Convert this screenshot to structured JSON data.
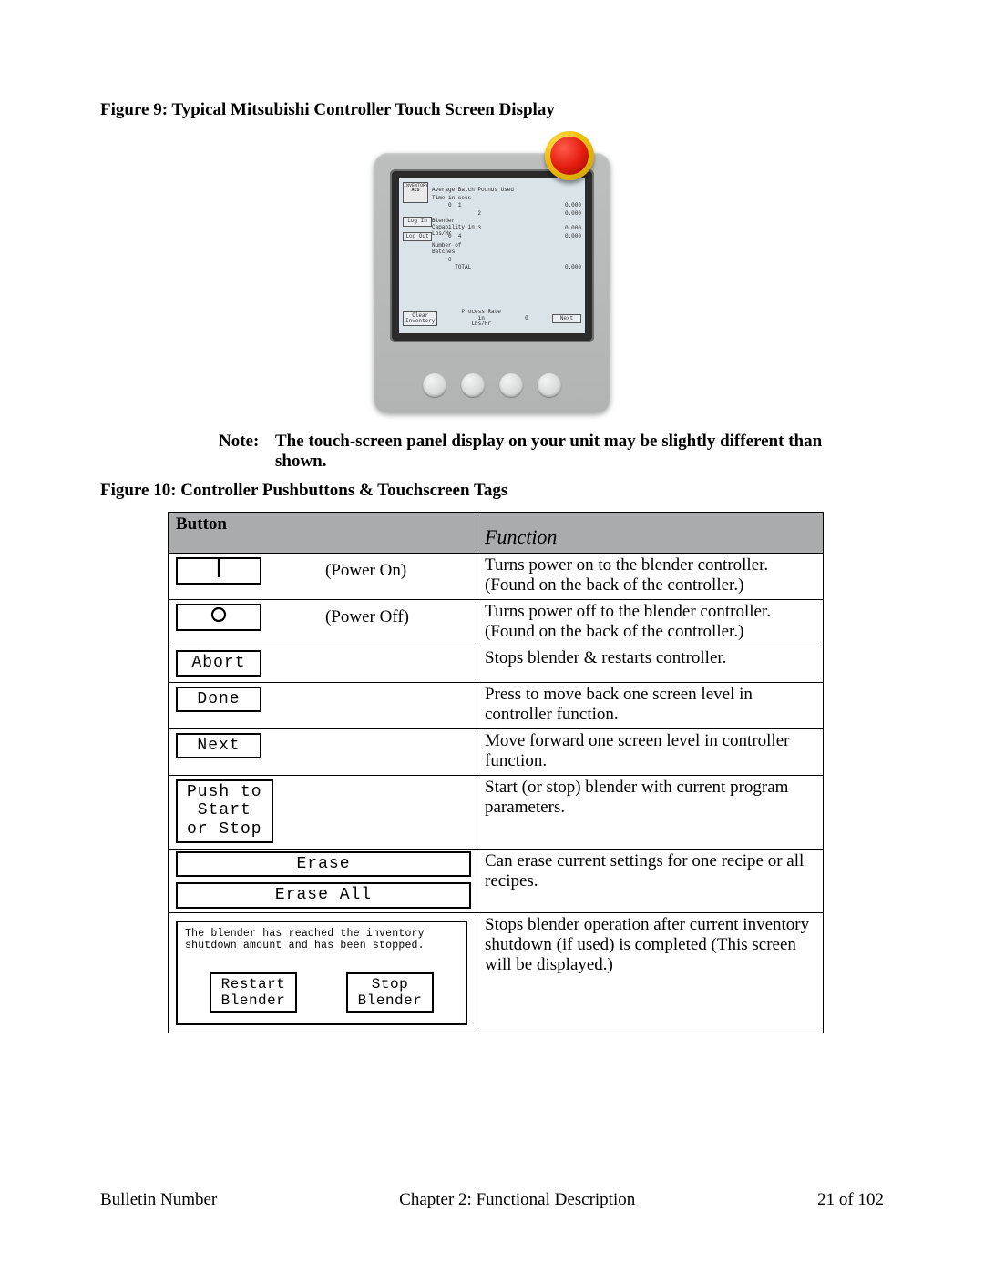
{
  "figure9": {
    "caption": "Figure 9: Typical Mitsubishi Controller Touch Screen Display",
    "device": {
      "badge_line1": "INVENTORY",
      "badge_line2": "ACS",
      "side_buttons": [
        "Log In",
        "Log Out"
      ],
      "heading1": "Average Batch Pounds Used",
      "heading2": "Time in secs",
      "blender_label": "Blender\nCapability in\nLbs/Hr",
      "batches_label": "Number of\nBatches",
      "total_label": "TOTAL",
      "rate_label": "Process Rate\nin\nLbs/Hr",
      "clear_label": "Clear\nInventory",
      "next_label": "Next",
      "channels": [
        "1",
        "2",
        "3",
        "4"
      ],
      "zeros": [
        "0.000",
        "0.000",
        "0.000",
        "0.000"
      ],
      "rate_value": "0",
      "total_value": "0.000",
      "channel_value": "0"
    }
  },
  "note": {
    "label": "Note:",
    "text": "The touch-screen panel display on your unit may be slightly different than shown."
  },
  "figure10": {
    "caption": "Figure 10: Controller Pushbuttons & Touchscreen Tags",
    "headers": {
      "button": "Button",
      "function": "Function"
    },
    "rows": [
      {
        "button_kind": "power_on",
        "button_label": "(Power On)",
        "function": "Turns power on to the blender controller. (Found on the back of the controller.)"
      },
      {
        "button_kind": "power_off",
        "button_label": "(Power Off)",
        "function": "Turns power off to the blender controller. (Found on the back of the controller.)"
      },
      {
        "button_kind": "tag",
        "tags": [
          "Abort"
        ],
        "function": "Stops blender & restarts controller."
      },
      {
        "button_kind": "tag",
        "tags": [
          "Done"
        ],
        "function": "Press to move back one screen level in controller function."
      },
      {
        "button_kind": "tag",
        "tags": [
          "Next"
        ],
        "function": "Move forward one screen level in controller function."
      },
      {
        "button_kind": "tag_multi",
        "tags": [
          "Push to\nStart\nor Stop"
        ],
        "function": "Start (or stop) blender with current program parameters."
      },
      {
        "button_kind": "tag_stack",
        "tags": [
          "Erase",
          "Erase All"
        ],
        "function": "Can erase current settings for one recipe or all recipes."
      },
      {
        "button_kind": "msgbox",
        "message": "The blender has reached the inventory shutdown amount and has been stopped.",
        "tags": [
          "Restart\nBlender",
          "Stop\nBlender"
        ],
        "function": "Stops blender operation after current inventory shutdown (if used) is completed (This screen will be displayed.)"
      }
    ]
  },
  "footer": {
    "left": "Bulletin Number",
    "center": "Chapter 2: Functional Description",
    "right": "21 of 102"
  },
  "colors": {
    "page_bg": "#ffffff",
    "text": "#000000",
    "table_header_bg": "#a9abad",
    "bezel": "#b7b9b9",
    "screen_bg": "#d9e3e8",
    "estop_red": "#e11b0c",
    "estop_yellow": "#f4c20d"
  }
}
